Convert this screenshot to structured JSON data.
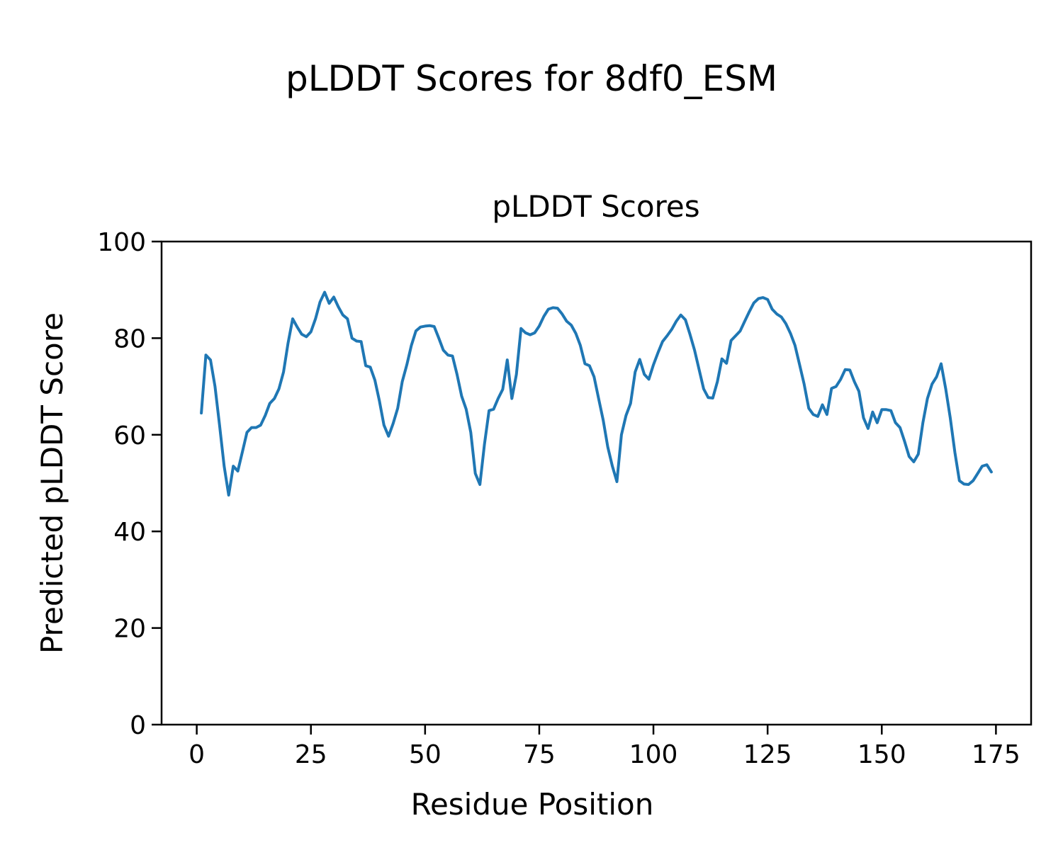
{
  "figure": {
    "suptitle": "pLDDT Scores for 8df0_ESM",
    "background_color": "#ffffff",
    "text_color": "#000000"
  },
  "chart_data": {
    "type": "line",
    "title": "pLDDT Scores",
    "xlabel": "Residue Position",
    "ylabel": "Predicted pLDDT Score",
    "xlim": [
      -7.7,
      182.7
    ],
    "ylim": [
      0,
      100
    ],
    "xticks": [
      0,
      25,
      50,
      75,
      100,
      125,
      150,
      175
    ],
    "yticks": [
      0,
      20,
      40,
      60,
      80,
      100
    ],
    "grid": false,
    "legend": null,
    "line_color": "#1f77b4",
    "line_width": 4,
    "series": [
      {
        "name": "pLDDT",
        "x_start": 1,
        "x_step": 1,
        "y": [
          64.5,
          76.5,
          75.5,
          70,
          62,
          53.5,
          47.5,
          53.5,
          52.5,
          56.5,
          60.5,
          61.5,
          61.5,
          62,
          64,
          66.5,
          67.5,
          69.5,
          73,
          79,
          84,
          82.3,
          80.8,
          80.3,
          81.3,
          84,
          87.5,
          89.5,
          87.2,
          88.5,
          86.5,
          84.8,
          84,
          80,
          79.4,
          79.3,
          74.3,
          74,
          71.3,
          67,
          62,
          59.7,
          62.3,
          65.5,
          71,
          74.5,
          78.5,
          81.5,
          82.3,
          82.5,
          82.6,
          82.4,
          80,
          77.5,
          76.5,
          76.3,
          72.5,
          68,
          65.3,
          60.5,
          52,
          49.7,
          58,
          65,
          65.3,
          67.5,
          69.4,
          75.5,
          67.5,
          72.5,
          82,
          81.1,
          80.7,
          81.1,
          82.5,
          84.5,
          86,
          86.3,
          86.2,
          85,
          83.5,
          82.7,
          81,
          78.5,
          74.7,
          74.3,
          72,
          67.5,
          63,
          57.5,
          53.5,
          50.3,
          60,
          64,
          66.5,
          73,
          75.6,
          72.5,
          71.5,
          74.5,
          77,
          79.3,
          80.5,
          81.8,
          83.5,
          84.8,
          83.8,
          80.8,
          77.5,
          73.5,
          69.5,
          67.7,
          67.6,
          71,
          75.7,
          74.8,
          79.5,
          80.5,
          81.5,
          83.5,
          85.5,
          87.3,
          88.2,
          88.4,
          88,
          86,
          85,
          84.4,
          83,
          81,
          78.5,
          74.5,
          70.5,
          65.5,
          64.2,
          63.8,
          66.2,
          64.2,
          69.6,
          70,
          71.5,
          73.5,
          73.4,
          71,
          69,
          63.5,
          61.3,
          64.7,
          62.5,
          65.2,
          65.2,
          65,
          62.5,
          61.5,
          58.6,
          55.5,
          54.4,
          56,
          62.5,
          67.5,
          70.5,
          72,
          74.7,
          69.5,
          63.5,
          56.4,
          50.5,
          49.8,
          49.7,
          50.5,
          52,
          53.5,
          53.8,
          52.3
        ]
      }
    ]
  }
}
